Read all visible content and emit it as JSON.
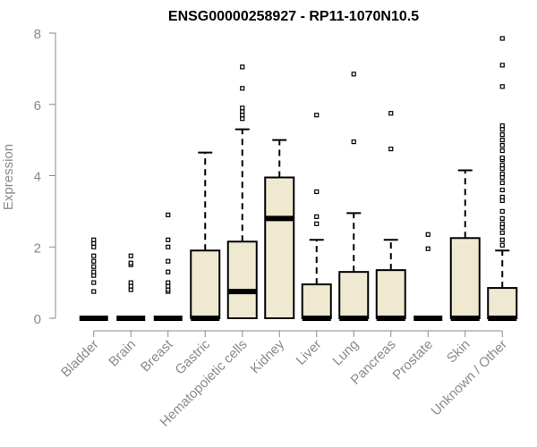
{
  "chart_data": {
    "type": "boxplot",
    "title": "ENSG00000258927 - RP11-1070N10.5",
    "ylabel": "Expression",
    "xlabel": "",
    "ylim": [
      0,
      8
    ],
    "yticks": [
      0,
      2,
      4,
      6,
      8
    ],
    "grid": false,
    "box_fill": "#efe9d1",
    "categories": [
      "Bladder",
      "Brain",
      "Breast",
      "Gastric",
      "Hematopoietic cells",
      "Kidney",
      "Liver",
      "Lung",
      "Pancreas",
      "Prostate",
      "Skin",
      "Unknown / Other"
    ],
    "boxes": [
      {
        "q1": 0,
        "median": 0,
        "q3": 0,
        "whisker_low": 0,
        "whisker_high": 0,
        "outliers": [
          0.75,
          1.0,
          1.2,
          1.3,
          1.45,
          1.6,
          1.75,
          2.0,
          2.1,
          2.2
        ]
      },
      {
        "q1": 0,
        "median": 0,
        "q3": 0,
        "whisker_low": 0,
        "whisker_high": 0,
        "outliers": [
          0.8,
          0.9,
          1.0,
          1.5,
          1.55,
          1.75
        ]
      },
      {
        "q1": 0,
        "median": 0,
        "q3": 0,
        "whisker_low": 0,
        "whisker_high": 0,
        "outliers": [
          0.75,
          0.8,
          0.9,
          1.0,
          1.3,
          1.6,
          2.0,
          2.2,
          2.9
        ]
      },
      {
        "q1": 0,
        "median": 0,
        "q3": 1.9,
        "whisker_low": 0,
        "whisker_high": 4.65,
        "outliers": []
      },
      {
        "q1": 0,
        "median": 0.75,
        "q3": 2.15,
        "whisker_low": 0,
        "whisker_high": 5.3,
        "outliers": [
          5.6,
          5.7,
          5.8,
          5.9,
          6.45,
          7.05
        ]
      },
      {
        "q1": 0,
        "median": 2.8,
        "q3": 3.95,
        "whisker_low": 0,
        "whisker_high": 5.0,
        "outliers": []
      },
      {
        "q1": 0,
        "median": 0,
        "q3": 0.95,
        "whisker_low": 0,
        "whisker_high": 2.2,
        "outliers": [
          2.65,
          2.85,
          3.55,
          5.7
        ]
      },
      {
        "q1": 0,
        "median": 0,
        "q3": 1.3,
        "whisker_low": 0,
        "whisker_high": 2.95,
        "outliers": [
          4.95,
          6.85
        ]
      },
      {
        "q1": 0,
        "median": 0,
        "q3": 1.35,
        "whisker_low": 0,
        "whisker_high": 2.2,
        "outliers": [
          4.75,
          5.75
        ]
      },
      {
        "q1": 0,
        "median": 0,
        "q3": 0,
        "whisker_low": 0,
        "whisker_high": 0,
        "outliers": [
          1.95,
          2.35
        ]
      },
      {
        "q1": 0,
        "median": 0,
        "q3": 2.25,
        "whisker_low": 0,
        "whisker_high": 4.15,
        "outliers": []
      },
      {
        "q1": 0,
        "median": 0,
        "q3": 0.85,
        "whisker_low": 0,
        "whisker_high": 1.9,
        "outliers": [
          2.05,
          2.2,
          2.4,
          2.55,
          2.65,
          2.8,
          3.0,
          3.3,
          3.4,
          3.6,
          3.8,
          3.95,
          4.05,
          4.2,
          4.3,
          4.45,
          4.5,
          4.7,
          4.85,
          5.0,
          5.15,
          5.3,
          5.4,
          6.5,
          7.1,
          7.85
        ]
      }
    ]
  }
}
